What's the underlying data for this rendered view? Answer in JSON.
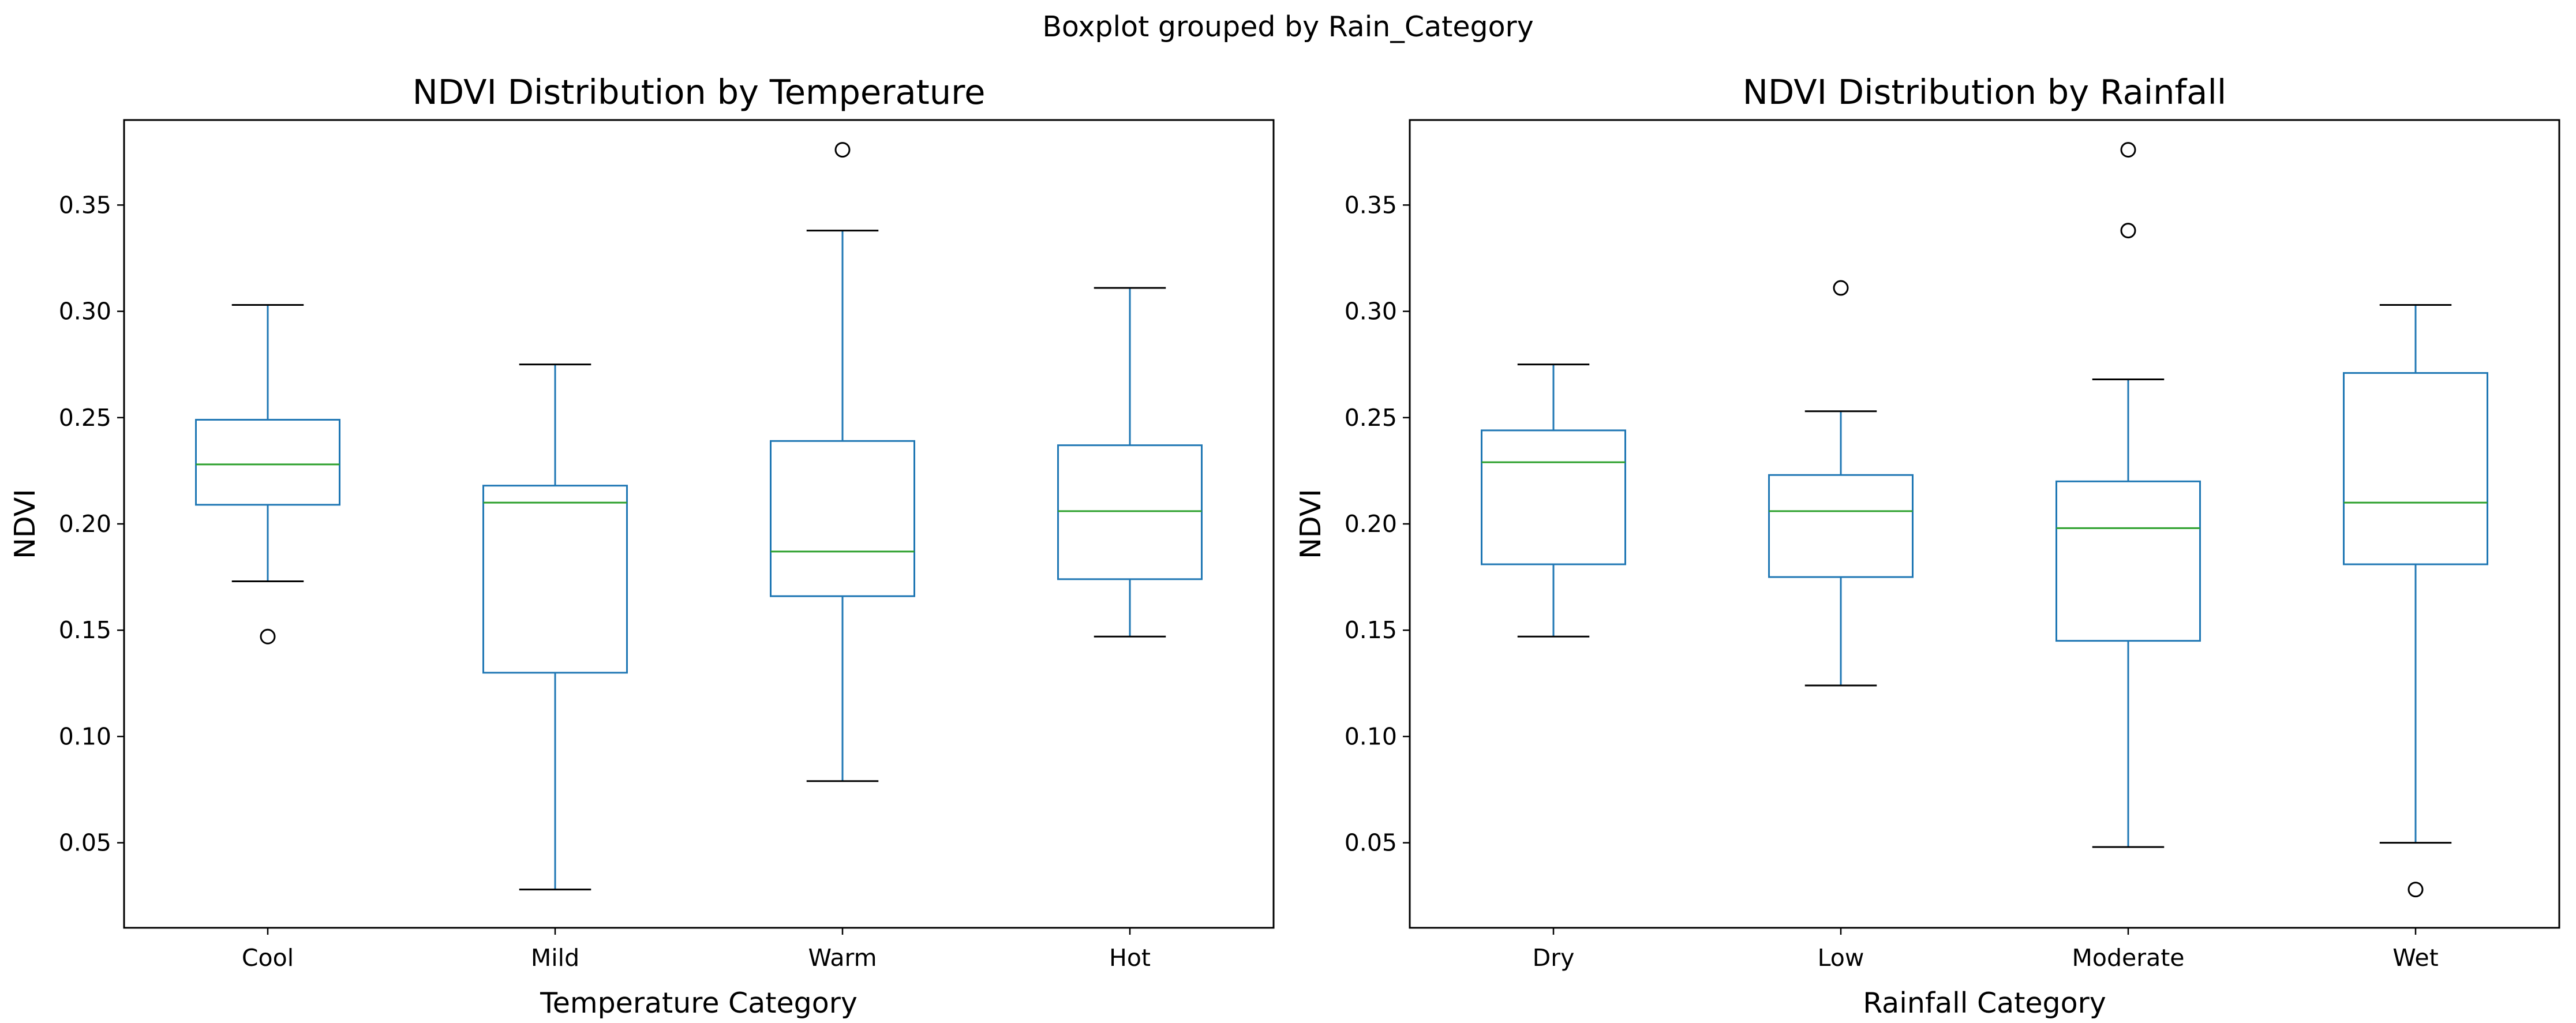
{
  "figure": {
    "suptitle": "Boxplot grouped by Rain_Category"
  },
  "colors": {
    "box": "#1f77b4",
    "median": "#2ca02c",
    "whisker": "#1f77b4",
    "cap": "#000000",
    "flier": "#000000",
    "frame": "#000000"
  },
  "chart_data": [
    {
      "type": "boxplot",
      "title": "NDVI Distribution by Temperature",
      "xlabel": "Temperature Category",
      "ylabel": "NDVI",
      "ylim": [
        0.01,
        0.39
      ],
      "yticks": [
        0.05,
        0.1,
        0.15,
        0.2,
        0.25,
        0.3,
        0.35
      ],
      "ytick_labels": [
        "0.05",
        "0.10",
        "0.15",
        "0.20",
        "0.25",
        "0.30",
        "0.35"
      ],
      "grid": false,
      "categories": [
        "Cool",
        "Mild",
        "Warm",
        "Hot"
      ],
      "boxes": [
        {
          "whislo": 0.173,
          "q1": 0.209,
          "med": 0.228,
          "q3": 0.249,
          "whishi": 0.303,
          "fliers": [
            0.147
          ]
        },
        {
          "whislo": 0.028,
          "q1": 0.13,
          "med": 0.21,
          "q3": 0.218,
          "whishi": 0.275,
          "fliers": []
        },
        {
          "whislo": 0.079,
          "q1": 0.166,
          "med": 0.187,
          "q3": 0.239,
          "whishi": 0.338,
          "fliers": [
            0.376
          ]
        },
        {
          "whislo": 0.147,
          "q1": 0.174,
          "med": 0.206,
          "q3": 0.237,
          "whishi": 0.311,
          "fliers": []
        }
      ]
    },
    {
      "type": "boxplot",
      "title": "NDVI Distribution by Rainfall",
      "xlabel": "Rainfall Category",
      "ylabel": "NDVI",
      "ylim": [
        0.01,
        0.39
      ],
      "yticks": [
        0.05,
        0.1,
        0.15,
        0.2,
        0.25,
        0.3,
        0.35
      ],
      "ytick_labels": [
        "0.05",
        "0.10",
        "0.15",
        "0.20",
        "0.25",
        "0.30",
        "0.35"
      ],
      "grid": false,
      "categories": [
        "Dry",
        "Low",
        "Moderate",
        "Wet"
      ],
      "boxes": [
        {
          "whislo": 0.147,
          "q1": 0.181,
          "med": 0.229,
          "q3": 0.244,
          "whishi": 0.275,
          "fliers": []
        },
        {
          "whislo": 0.124,
          "q1": 0.175,
          "med": 0.206,
          "q3": 0.223,
          "whishi": 0.253,
          "fliers": [
            0.311
          ]
        },
        {
          "whislo": 0.048,
          "q1": 0.145,
          "med": 0.198,
          "q3": 0.22,
          "whishi": 0.268,
          "fliers": [
            0.338,
            0.376
          ]
        },
        {
          "whislo": 0.05,
          "q1": 0.181,
          "med": 0.21,
          "q3": 0.271,
          "whishi": 0.303,
          "fliers": [
            0.028
          ]
        }
      ]
    }
  ]
}
